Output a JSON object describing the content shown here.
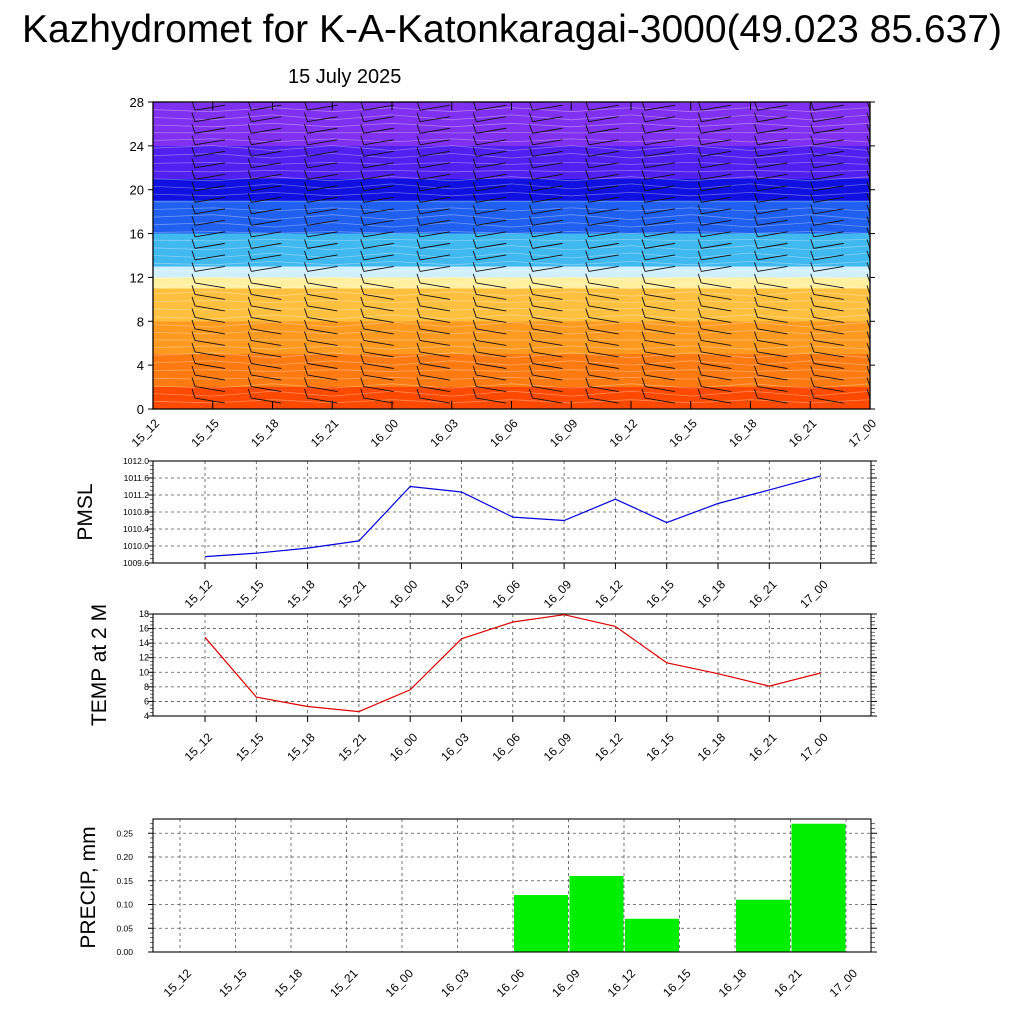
{
  "header": {
    "title": "Kazhydromet for K-A-Katonkaragai-3000(49.023 85.637)",
    "subtitle": "15 July 2025"
  },
  "time_labels": [
    "15_12",
    "15_15",
    "15_18",
    "15_21",
    "16_00",
    "16_03",
    "16_06",
    "16_09",
    "16_12",
    "16_15",
    "16_18",
    "16_21",
    "17_00"
  ],
  "colors": {
    "pmsl_line": "#0000dd",
    "temp_line": "#dd0000",
    "precip_bar": "#00ee00"
  },
  "chart_data": [
    {
      "type": "heatmap",
      "description_id": "cross-section",
      "x": [
        "15_12",
        "15_15",
        "15_18",
        "15_21",
        "16_00",
        "16_03",
        "16_06",
        "16_09",
        "16_12",
        "16_15",
        "16_18",
        "16_21",
        "17_00"
      ],
      "ylim": [
        0,
        28
      ],
      "yticks": [
        0,
        4,
        8,
        12,
        16,
        20,
        24,
        28
      ],
      "color_bands": [
        {
          "from": 0,
          "to": 2,
          "color": "#ff4a00"
        },
        {
          "from": 2,
          "to": 5,
          "color": "#ff7a10"
        },
        {
          "from": 5,
          "to": 8,
          "color": "#ff9a20"
        },
        {
          "from": 8,
          "to": 11,
          "color": "#ffc040"
        },
        {
          "from": 11,
          "to": 12,
          "color": "#fff0a0"
        },
        {
          "from": 12,
          "to": 13,
          "color": "#d0f0ff"
        },
        {
          "from": 13,
          "to": 16,
          "color": "#40b8f0"
        },
        {
          "from": 16,
          "to": 19,
          "color": "#2060f0"
        },
        {
          "from": 19,
          "to": 21,
          "color": "#1010e0"
        },
        {
          "from": 21,
          "to": 24,
          "color": "#5020f0"
        },
        {
          "from": 24,
          "to": 28,
          "color": "#8030f0"
        }
      ],
      "wind_barbs": "yes"
    },
    {
      "type": "line",
      "ylabel": "PMSL",
      "x": [
        "15_12",
        "15_15",
        "15_18",
        "15_21",
        "16_00",
        "16_03",
        "16_06",
        "16_09",
        "16_12",
        "16_15",
        "16_18",
        "16_21",
        "17_00"
      ],
      "values": [
        1009.75,
        1009.83,
        1009.95,
        1010.12,
        1011.4,
        1011.27,
        1010.68,
        1010.6,
        1011.1,
        1010.55,
        1011.0,
        1011.32,
        1011.65
      ],
      "ylim": [
        1009.6,
        1012.0
      ],
      "yticks": [
        "1009.6",
        "1010.0",
        "1010.4",
        "1010.8",
        "1011.2",
        "1011.6",
        "1012.0"
      ],
      "grid": true
    },
    {
      "type": "line",
      "ylabel": "TEMP at 2 M",
      "x": [
        "15_12",
        "15_15",
        "15_18",
        "15_21",
        "16_00",
        "16_03",
        "16_06",
        "16_09",
        "16_12",
        "16_15",
        "16_18",
        "16_21",
        "17_00"
      ],
      "values": [
        14.8,
        6.6,
        5.3,
        4.6,
        7.6,
        14.6,
        16.9,
        17.9,
        16.3,
        11.3,
        9.8,
        8.1,
        9.9
      ],
      "ylim": [
        4,
        18
      ],
      "yticks": [
        "4",
        "6",
        "8",
        "10",
        "12",
        "14",
        "16",
        "18"
      ],
      "grid": true
    },
    {
      "type": "bar",
      "ylabel": "PRECIP, mm",
      "categories": [
        "15_12",
        "15_15",
        "15_18",
        "15_21",
        "16_00",
        "16_03",
        "16_06",
        "16_09",
        "16_12",
        "16_15",
        "16_18",
        "16_21",
        "17_00"
      ],
      "values": [
        0,
        0,
        0,
        0,
        0,
        0,
        0.12,
        0.16,
        0.07,
        0,
        0.11,
        0.27,
        0
      ],
      "ylim": [
        0,
        0.28
      ],
      "yticks": [
        "0.00",
        "0.05",
        "0.10",
        "0.15",
        "0.20",
        "0.25"
      ],
      "grid": true
    }
  ]
}
